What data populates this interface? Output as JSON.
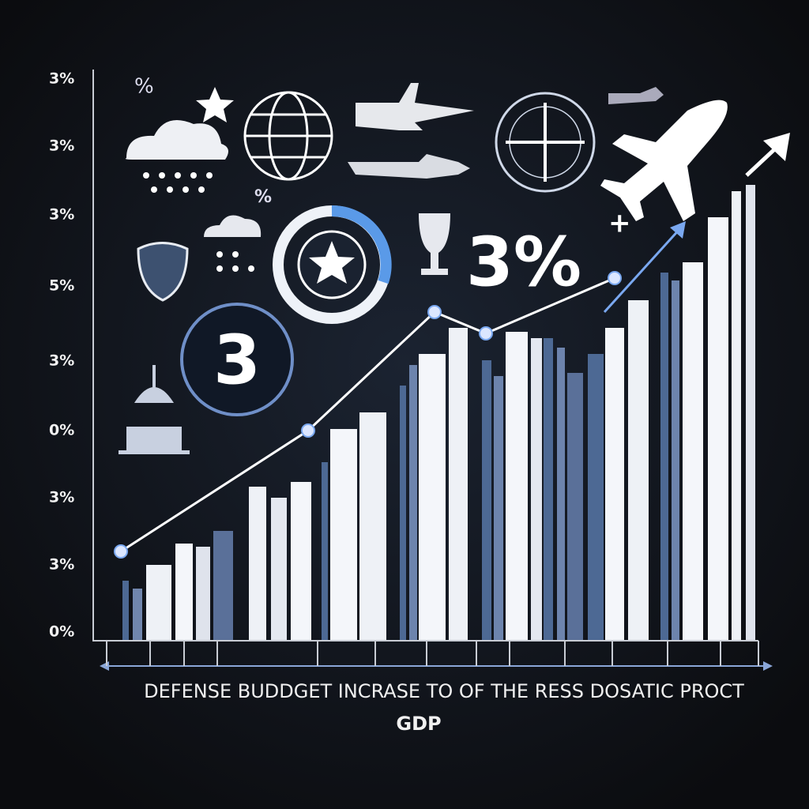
{
  "axis_labels": [
    "3%",
    "3%",
    "3%",
    "5%",
    "3%",
    "0%",
    "3%",
    "3%",
    "0%"
  ],
  "caption": {
    "line1": "DEFENSE BUDDGET INCRASE TO OF THE RESS DOSATIC PROCT",
    "line2": "GDP"
  },
  "badge": {
    "text": "3%",
    "plus": "+"
  },
  "ring_number": "3",
  "icon_texts": [
    "%",
    "%"
  ]
}
